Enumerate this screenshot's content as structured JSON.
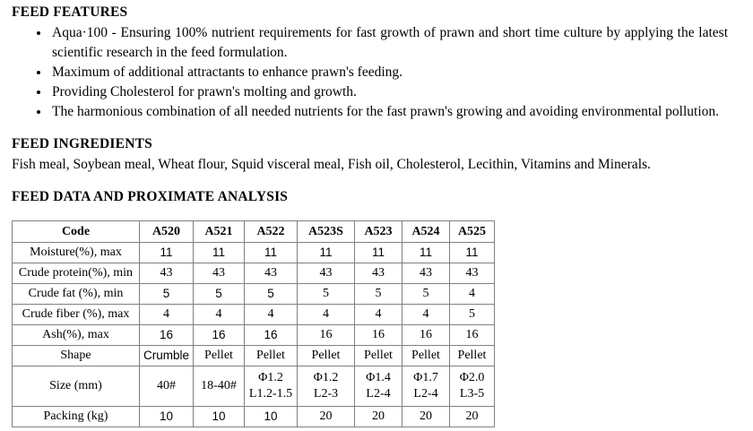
{
  "page": {
    "background": "#ffffff",
    "text_color": "#000000",
    "table_border_color": "#808080"
  },
  "sections": {
    "features": {
      "heading": "FEED FEATURES",
      "bullets": [
        "Aqua·100 - Ensuring 100% nutrient requirements for fast growth of prawn and short time culture by applying the latest scientific research in the feed formulation.",
        "Maximum of additional attractants to enhance prawn's feeding.",
        "Providing Cholesterol for prawn's molting and growth.",
        "The harmonious combination of all needed nutrients for the fast prawn's growing and avoiding environmental pollution."
      ]
    },
    "ingredients": {
      "heading": "FEED INGREDIENTS",
      "text": "Fish meal, Soybean meal, Wheat flour, Squid visceral meal, Fish oil, Cholesterol, Lecithin, Vitamins and Minerals."
    },
    "analysis": {
      "heading": "FEED DATA AND PROXIMATE ANALYSIS"
    }
  },
  "table": {
    "columns": [
      "Code",
      "A520",
      "A521",
      "A522",
      "A523S",
      "A523",
      "A524",
      "A525"
    ],
    "rows": [
      {
        "label": "Moisture(%), max",
        "values": [
          "11",
          "11",
          "11",
          "11",
          "11",
          "11",
          "11"
        ]
      },
      {
        "label": "Crude protein(%), min",
        "values": [
          "43",
          "43",
          "43",
          "43",
          "43",
          "43",
          "43"
        ]
      },
      {
        "label": "Crude fat (%), min",
        "values": [
          "5",
          "5",
          "5",
          "5",
          "5",
          "5",
          "4"
        ]
      },
      {
        "label": "Crude fiber (%), max",
        "values": [
          "4",
          "4",
          "4",
          "4",
          "4",
          "4",
          "5"
        ]
      },
      {
        "label": "Ash(%), max",
        "values": [
          "16",
          "16",
          "16",
          "16",
          "16",
          "16",
          "16"
        ]
      },
      {
        "label": "Shape",
        "values": [
          "Crumble",
          "Pellet",
          "Pellet",
          "Pellet",
          "Pellet",
          "Pellet",
          "Pellet"
        ]
      },
      {
        "label": "Size (mm)",
        "values": [
          "40#",
          "18-40#",
          "Φ1.2\nL1.2-1.5",
          "Φ1.2\nL2-3",
          "Φ1.4\nL2-4",
          "Φ1.7\nL2-4",
          "Φ2.0\nL3-5"
        ]
      },
      {
        "label": "Packing (kg)",
        "values": [
          "10",
          "10",
          "10",
          "20",
          "20",
          "20",
          "20"
        ]
      }
    ]
  }
}
